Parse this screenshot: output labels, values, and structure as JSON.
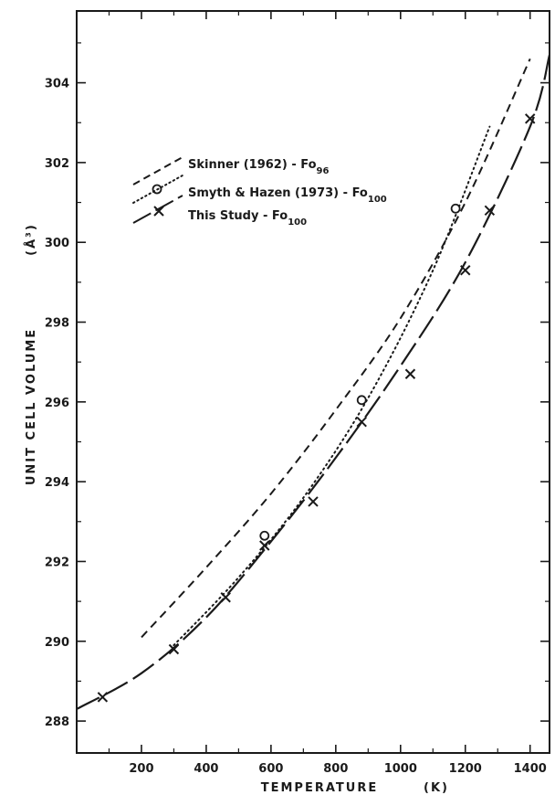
{
  "chart_data": {
    "type": "line",
    "xlabel": "TEMPERATURE",
    "xlabel_unit": "(K)",
    "ylabel": "UNIT CELL VOLUME",
    "ylabel_unit": "(Å³)",
    "xlim": [
      0,
      1460
    ],
    "ylim": [
      287.2,
      305.8
    ],
    "x_ticks": [
      200,
      400,
      600,
      800,
      1000,
      1200,
      1400
    ],
    "y_ticks": [
      288,
      290,
      292,
      294,
      296,
      298,
      300,
      302,
      304
    ],
    "grid": false,
    "legend_position": "upper-left",
    "series": [
      {
        "name": "Skinner (1962) - Fo96",
        "name_main": "Skinner (1962) - Fo",
        "name_sub": "96",
        "line_style": "dashed",
        "marker": "none",
        "curve": [
          [
            200,
            290.1
          ],
          [
            400,
            291.85
          ],
          [
            600,
            293.7
          ],
          [
            800,
            295.8
          ],
          [
            1000,
            298.1
          ],
          [
            1200,
            301.0
          ],
          [
            1400,
            304.6
          ]
        ]
      },
      {
        "name": "Smyth & Hazen (1973) - Fo100",
        "name_main": "Smyth & Hazen (1973) - Fo",
        "name_sub": "100",
        "line_style": "dotted",
        "marker": "circle",
        "points": [
          [
            580,
            292.6
          ],
          [
            880,
            296.0
          ],
          [
            1170,
            300.8
          ]
        ],
        "curve": [
          [
            300,
            289.9
          ],
          [
            500,
            291.6
          ],
          [
            700,
            293.6
          ],
          [
            900,
            296.1
          ],
          [
            1100,
            299.3
          ],
          [
            1275,
            302.9
          ]
        ]
      },
      {
        "name": "This Study - Fo100",
        "name_main": "This Study - Fo",
        "name_sub": "100",
        "line_style": "long-dash",
        "marker": "x",
        "points": [
          [
            80,
            288.6
          ],
          [
            300,
            289.8
          ],
          [
            460,
            291.1
          ],
          [
            580,
            292.4
          ],
          [
            730,
            293.5
          ],
          [
            880,
            295.5
          ],
          [
            1030,
            296.7
          ],
          [
            1200,
            299.3
          ],
          [
            1275,
            300.8
          ],
          [
            1400,
            303.1
          ]
        ],
        "curve": [
          [
            0,
            288.3
          ],
          [
            200,
            289.2
          ],
          [
            400,
            290.6
          ],
          [
            600,
            292.5
          ],
          [
            800,
            294.6
          ],
          [
            1000,
            296.9
          ],
          [
            1200,
            299.5
          ],
          [
            1400,
            302.9
          ],
          [
            1460,
            304.7
          ]
        ]
      }
    ]
  }
}
